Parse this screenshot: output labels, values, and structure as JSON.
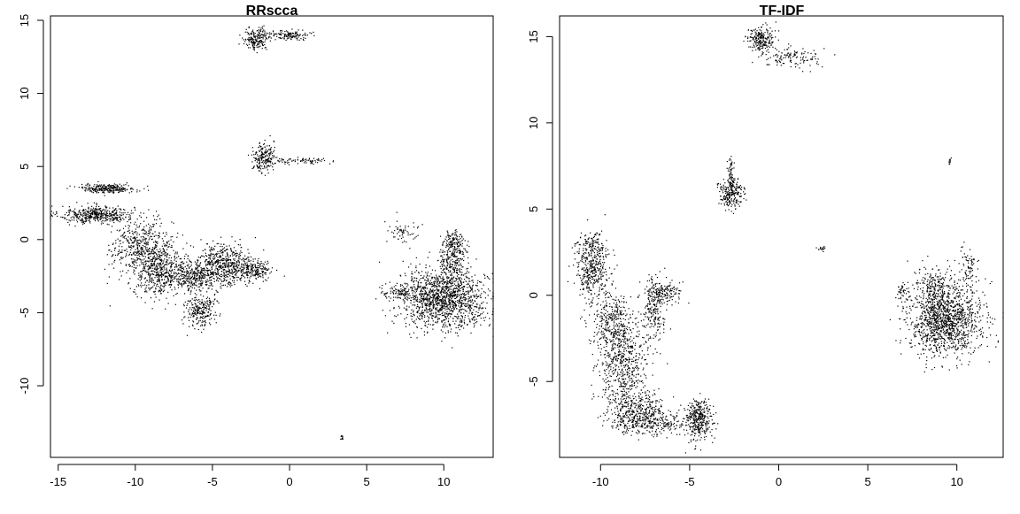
{
  "figure": {
    "background": "#ffffff",
    "ink": "#000000"
  },
  "chart_data": [
    {
      "type": "scatter",
      "title": "RRscca",
      "xlabel": "",
      "ylabel": "",
      "xlim": [
        -15.5,
        13.2
      ],
      "ylim": [
        -14.9,
        15.3
      ],
      "xticks": [
        -15,
        -10,
        -5,
        0,
        5,
        10
      ],
      "yticks": [
        -10,
        -5,
        0,
        5,
        10,
        15
      ],
      "xtick_labels": [
        "-15",
        "-10",
        "-5",
        "0",
        "5",
        "10"
      ],
      "ytick_labels": [
        "-10",
        "-5",
        "0",
        "5",
        "10",
        "15"
      ],
      "marker_color": "#000000",
      "clusters": [
        {
          "x": -12.5,
          "y": 1.7,
          "sx": 1.2,
          "sy": 0.3,
          "n": 450
        },
        {
          "x": -11.8,
          "y": 3.5,
          "sx": 0.9,
          "sy": 0.15,
          "n": 250
        },
        {
          "x": -9.5,
          "y": -0.5,
          "sx": 1.0,
          "sy": 0.9,
          "n": 500
        },
        {
          "x": -8.5,
          "y": -2.3,
          "sx": 0.8,
          "sy": 0.8,
          "n": 400
        },
        {
          "x": -6.5,
          "y": -2.6,
          "sx": 0.9,
          "sy": 0.5,
          "n": 300
        },
        {
          "x": -4.3,
          "y": -1.8,
          "sx": 1.1,
          "sy": 0.7,
          "n": 650
        },
        {
          "x": -5.8,
          "y": -4.8,
          "sx": 0.5,
          "sy": 0.6,
          "n": 250
        },
        {
          "x": -2.2,
          "y": -2.1,
          "sx": 0.5,
          "sy": 0.3,
          "n": 150
        },
        {
          "x": -1.7,
          "y": 5.6,
          "sx": 0.35,
          "sy": 0.5,
          "n": 200
        },
        {
          "x": 0.7,
          "y": 5.4,
          "sx": 0.9,
          "sy": 0.1,
          "n": 80
        },
        {
          "x": -2.1,
          "y": 13.7,
          "sx": 0.4,
          "sy": 0.35,
          "n": 200
        },
        {
          "x": 0.0,
          "y": 14.0,
          "sx": 0.7,
          "sy": 0.15,
          "n": 130
        },
        {
          "x": 10.0,
          "y": -4.0,
          "sx": 1.4,
          "sy": 1.0,
          "n": 1400
        },
        {
          "x": 10.6,
          "y": -1.2,
          "sx": 0.4,
          "sy": 0.8,
          "n": 250
        },
        {
          "x": 10.7,
          "y": 0.0,
          "sx": 0.3,
          "sy": 0.3,
          "n": 60
        },
        {
          "x": 7.2,
          "y": -3.6,
          "sx": 0.8,
          "sy": 0.25,
          "n": 100
        },
        {
          "x": 7.4,
          "y": 0.5,
          "sx": 0.5,
          "sy": 0.5,
          "n": 60
        },
        {
          "x": 3.4,
          "y": -13.6,
          "sx": 0.05,
          "sy": 0.1,
          "n": 10
        }
      ]
    },
    {
      "type": "scatter",
      "title": "TF-IDF",
      "xlabel": "",
      "ylabel": "",
      "xlim": [
        -12.3,
        12.6
      ],
      "ylim": [
        -9.4,
        16.2
      ],
      "xticks": [
        -10,
        -5,
        0,
        5,
        10
      ],
      "yticks": [
        -5,
        0,
        5,
        10,
        15
      ],
      "xtick_labels": [
        "-10",
        "-5",
        "0",
        "5",
        "10"
      ],
      "ytick_labels": [
        "-5",
        "0",
        "5",
        "10",
        "15"
      ],
      "marker_color": "#000000",
      "clusters": [
        {
          "x": -10.5,
          "y": 1.5,
          "sx": 0.5,
          "sy": 0.9,
          "n": 400
        },
        {
          "x": -10.5,
          "y": 3.0,
          "sx": 0.3,
          "sy": 0.3,
          "n": 60
        },
        {
          "x": -9.3,
          "y": -1.5,
          "sx": 0.6,
          "sy": 0.8,
          "n": 300
        },
        {
          "x": -8.8,
          "y": -4.0,
          "sx": 0.7,
          "sy": 1.2,
          "n": 550
        },
        {
          "x": -8.0,
          "y": -6.8,
          "sx": 0.8,
          "sy": 0.6,
          "n": 450
        },
        {
          "x": -6.5,
          "y": -7.4,
          "sx": 0.8,
          "sy": 0.3,
          "n": 150
        },
        {
          "x": -4.5,
          "y": -7.2,
          "sx": 0.4,
          "sy": 0.6,
          "n": 350
        },
        {
          "x": -7.0,
          "y": -1.0,
          "sx": 0.3,
          "sy": 1.0,
          "n": 200
        },
        {
          "x": -6.5,
          "y": 0.2,
          "sx": 0.5,
          "sy": 0.3,
          "n": 150
        },
        {
          "x": -2.7,
          "y": 6.0,
          "sx": 0.35,
          "sy": 0.45,
          "n": 250
        },
        {
          "x": -2.7,
          "y": 7.3,
          "sx": 0.08,
          "sy": 0.4,
          "n": 40
        },
        {
          "x": -1.0,
          "y": 14.8,
          "sx": 0.4,
          "sy": 0.35,
          "n": 220
        },
        {
          "x": 0.6,
          "y": 13.8,
          "sx": 0.9,
          "sy": 0.3,
          "n": 130
        },
        {
          "x": 2.4,
          "y": 2.7,
          "sx": 0.1,
          "sy": 0.08,
          "n": 15
        },
        {
          "x": 9.6,
          "y": 7.7,
          "sx": 0.05,
          "sy": 0.15,
          "n": 12
        },
        {
          "x": 9.3,
          "y": -1.5,
          "sx": 1.0,
          "sy": 1.0,
          "n": 1300
        },
        {
          "x": 8.8,
          "y": 0.6,
          "sx": 0.6,
          "sy": 0.6,
          "n": 200
        },
        {
          "x": 10.7,
          "y": 1.5,
          "sx": 0.3,
          "sy": 0.6,
          "n": 80
        },
        {
          "x": 7.0,
          "y": 0.2,
          "sx": 0.2,
          "sy": 0.3,
          "n": 40
        }
      ]
    }
  ]
}
